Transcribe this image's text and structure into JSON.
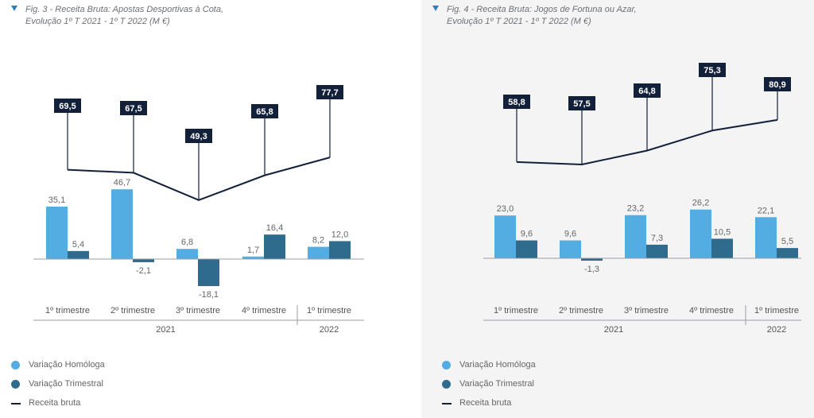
{
  "colors": {
    "homologa": "#53ade2",
    "trimestral": "#2f6b8c",
    "line": "#13203a",
    "axis": "#9a9ea3",
    "text": "#666666"
  },
  "figures": [
    {
      "caption_line1": "Fig. 3 - Receita Bruta: Apostas Desportivas à Cota,",
      "caption_line2": "Evolução 1º T 2021 - 1º T 2022 (M €)",
      "legend": {
        "homologa": "Variação Homóloga",
        "trimestral": "Variação Trimestral",
        "receita": "Receita bruta"
      },
      "chart_data": {
        "type": "bar",
        "categories": [
          "1º trimestre",
          "2º trimestre",
          "3º trimestre",
          "4º trimestre",
          "1º trimestre"
        ],
        "years": [
          {
            "label": "2021",
            "span": [
              0,
              3
            ]
          },
          {
            "label": "2022",
            "span": [
              4,
              4
            ]
          }
        ],
        "series": [
          {
            "name": "Variação Homóloga",
            "type": "bar",
            "values": [
              35.1,
              46.7,
              6.8,
              1.7,
              8.2
            ],
            "labels": [
              "35,1",
              "46,7",
              "6,8",
              "1,7",
              "8,2"
            ]
          },
          {
            "name": "Variação Trimestral",
            "type": "bar",
            "values": [
              5.4,
              -2.1,
              -18.1,
              16.4,
              12.0
            ],
            "labels": [
              "5,4",
              "-2,1",
              "-18,1",
              "16,4",
              "12,0"
            ]
          },
          {
            "name": "Receita bruta",
            "type": "line",
            "values": [
              69.5,
              67.5,
              49.3,
              65.8,
              77.7
            ],
            "labels": [
              "69,5",
              "67,5",
              "49,3",
              "65,8",
              "77,7"
            ]
          }
        ]
      }
    },
    {
      "caption_line1": "Fig. 4 - Receita Bruta: Jogos de Fortuna ou Azar,",
      "caption_line2": "Evolução 1º T 2021 - 1º T 2022 (M €)",
      "legend": {
        "homologa": "Variação Homóloga",
        "trimestral": "Variação Trimestral",
        "receita": "Receita bruta"
      },
      "chart_data": {
        "type": "bar",
        "categories": [
          "1º trimestre",
          "2º trimestre",
          "3º trimestre",
          "4º trimestre",
          "1º trimestre"
        ],
        "years": [
          {
            "label": "2021",
            "span": [
              0,
              3
            ]
          },
          {
            "label": "2022",
            "span": [
              4,
              4
            ]
          }
        ],
        "series": [
          {
            "name": "Variação Homóloga",
            "type": "bar",
            "values": [
              23.0,
              9.6,
              23.2,
              26.2,
              22.1
            ],
            "labels": [
              "23,0",
              "9,6",
              "23,2",
              "26,2",
              "22,1"
            ]
          },
          {
            "name": "Variação Trimestral",
            "type": "bar",
            "values": [
              9.6,
              -1.3,
              7.3,
              10.5,
              5.5
            ],
            "labels": [
              "9,6",
              "-1,3",
              "7,3",
              "10,5",
              "5,5"
            ]
          },
          {
            "name": "Receita bruta",
            "type": "line",
            "values": [
              58.8,
              57.5,
              64.8,
              75.3,
              80.9
            ],
            "labels": [
              "58,8",
              "57,5",
              "64,8",
              "75,3",
              "80,9"
            ]
          }
        ]
      }
    }
  ]
}
